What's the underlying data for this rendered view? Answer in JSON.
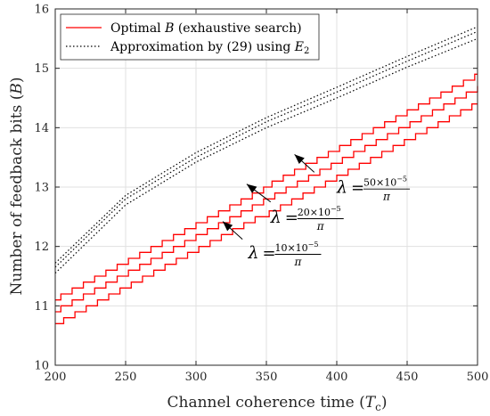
{
  "chart_data": {
    "type": "line",
    "xlabel_main": "Channel coherence time (",
    "xlabel_var": "T",
    "xlabel_sub": "c",
    "xlabel_close": ")",
    "ylabel_main": "Number of feedback bits (",
    "ylabel_var": "B",
    "ylabel_close": ")",
    "xlim": [
      200,
      500
    ],
    "ylim": [
      10,
      16
    ],
    "xticks": [
      200,
      250,
      300,
      350,
      400,
      450,
      500
    ],
    "yticks": [
      10,
      11,
      12,
      13,
      14,
      15,
      16
    ],
    "grid": true,
    "legend_position": "top-left",
    "colors": {
      "optimal": "#ff0000",
      "approx": "#000000"
    },
    "legend": [
      {
        "text_pre": "Optimal ",
        "text_var": "B",
        "text_post": " (exhaustive search)",
        "style": "solid"
      },
      {
        "text_pre": "Approximation by (29) using ",
        "text_var": "E",
        "text_sub": "2",
        "text_post": "",
        "style": "dotted"
      }
    ],
    "series": [
      {
        "group": "optimal",
        "lambda_coef": "10",
        "x": [
          200,
          500
        ],
        "y": [
          10.7,
          14.4
        ]
      },
      {
        "group": "optimal",
        "lambda_coef": "20",
        "x": [
          200,
          500
        ],
        "y": [
          10.9,
          14.65
        ]
      },
      {
        "group": "optimal",
        "lambda_coef": "50",
        "x": [
          200,
          500
        ],
        "y": [
          11.1,
          14.9
        ]
      },
      {
        "group": "approx",
        "lambda_coef": "10",
        "x": [
          200,
          250,
          300,
          350,
          400,
          450,
          500
        ],
        "y": [
          11.55,
          12.7,
          13.42,
          14.0,
          14.5,
          15.02,
          15.5
        ]
      },
      {
        "group": "approx",
        "lambda_coef": "20",
        "x": [
          200,
          250,
          300,
          350,
          400,
          450,
          500
        ],
        "y": [
          11.65,
          12.8,
          13.5,
          14.1,
          14.6,
          15.12,
          15.62
        ]
      },
      {
        "group": "approx",
        "lambda_coef": "50",
        "x": [
          200,
          250,
          300,
          350,
          400,
          450,
          500
        ],
        "y": [
          11.72,
          12.86,
          13.58,
          14.17,
          14.68,
          15.2,
          15.7
        ]
      }
    ],
    "annotations": [
      {
        "coef": "50",
        "exp": "−5",
        "pi": "π",
        "lambda": "λ",
        "eq": "=",
        "times": "×",
        "base": "10",
        "text_x": 400,
        "text_y": 12.9,
        "arrow_from": [
          384,
          13.25
        ],
        "arrow_to": [
          370,
          13.55
        ]
      },
      {
        "coef": "20",
        "exp": "−5",
        "pi": "π",
        "lambda": "λ",
        "eq": "=",
        "times": "×",
        "base": "10",
        "text_x": 353,
        "text_y": 12.4,
        "arrow_from": [
          353,
          12.75
        ],
        "arrow_to": [
          336,
          13.05
        ]
      },
      {
        "coef": "10",
        "exp": "−5",
        "pi": "π",
        "lambda": "λ",
        "eq": "=",
        "times": "×",
        "base": "10",
        "text_x": 337,
        "text_y": 11.8,
        "arrow_from": [
          333,
          12.12
        ],
        "arrow_to": [
          319,
          12.42
        ]
      }
    ]
  }
}
